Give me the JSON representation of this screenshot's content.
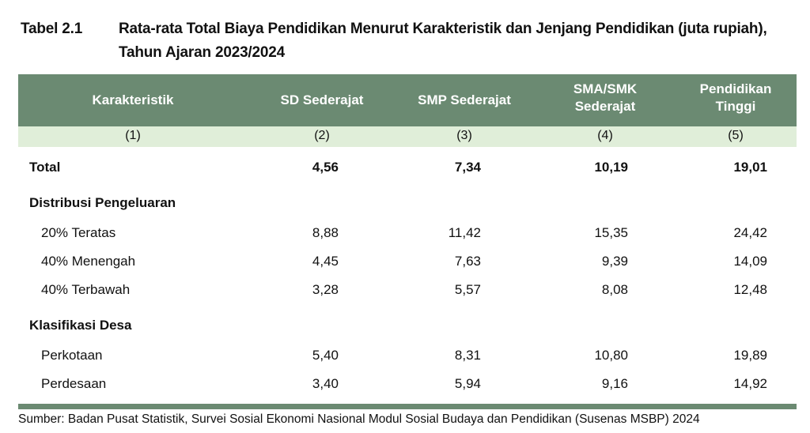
{
  "title": {
    "number": "Tabel 2.1",
    "text": "Rata-rata Total Biaya Pendidikan Menurut Karakteristik dan Jenjang Pendidikan (juta rupiah), Tahun Ajaran 2023/2024"
  },
  "colors": {
    "header": "#6b8a72",
    "subheader": "#e0eed9"
  },
  "columns": [
    {
      "label": "Karakteristik",
      "num": "(1)"
    },
    {
      "label": "SD Sederajat",
      "num": "(2)"
    },
    {
      "label": "SMP Sederajat",
      "num": "(3)"
    },
    {
      "label": "SMA/SMK Sederajat",
      "num": "(4)"
    },
    {
      "label": "Pendidikan Tinggi",
      "num": "(5)"
    }
  ],
  "rows": [
    {
      "label": "Total",
      "bold": true,
      "values": [
        "4,56",
        "7,34",
        "10,19",
        "19,01"
      ]
    },
    {
      "label": "Distribusi Pengeluaran",
      "bold": true,
      "values": [
        "",
        "",
        "",
        ""
      ]
    },
    {
      "label": "20% Teratas",
      "values": [
        "8,88",
        "11,42",
        "15,35",
        "24,42"
      ]
    },
    {
      "label": "40% Menengah",
      "values": [
        "4,45",
        "7,63",
        "9,39",
        "14,09"
      ]
    },
    {
      "label": "40% Terbawah",
      "values": [
        "3,28",
        "5,57",
        "8,08",
        "12,48"
      ]
    },
    {
      "label": "Klasifikasi Desa",
      "bold": true,
      "values": [
        "",
        "",
        "",
        ""
      ]
    },
    {
      "label": "Perkotaan",
      "values": [
        "5,40",
        "8,31",
        "10,80",
        "19,89"
      ]
    },
    {
      "label": "Perdesaan",
      "values": [
        "3,40",
        "5,94",
        "9,16",
        "14,92"
      ]
    }
  ],
  "source": "Sumber: Badan Pusat Statistik, Survei Sosial Ekonomi Nasional Modul Sosial Budaya dan Pendidikan (Susenas MSBP) 2024"
}
